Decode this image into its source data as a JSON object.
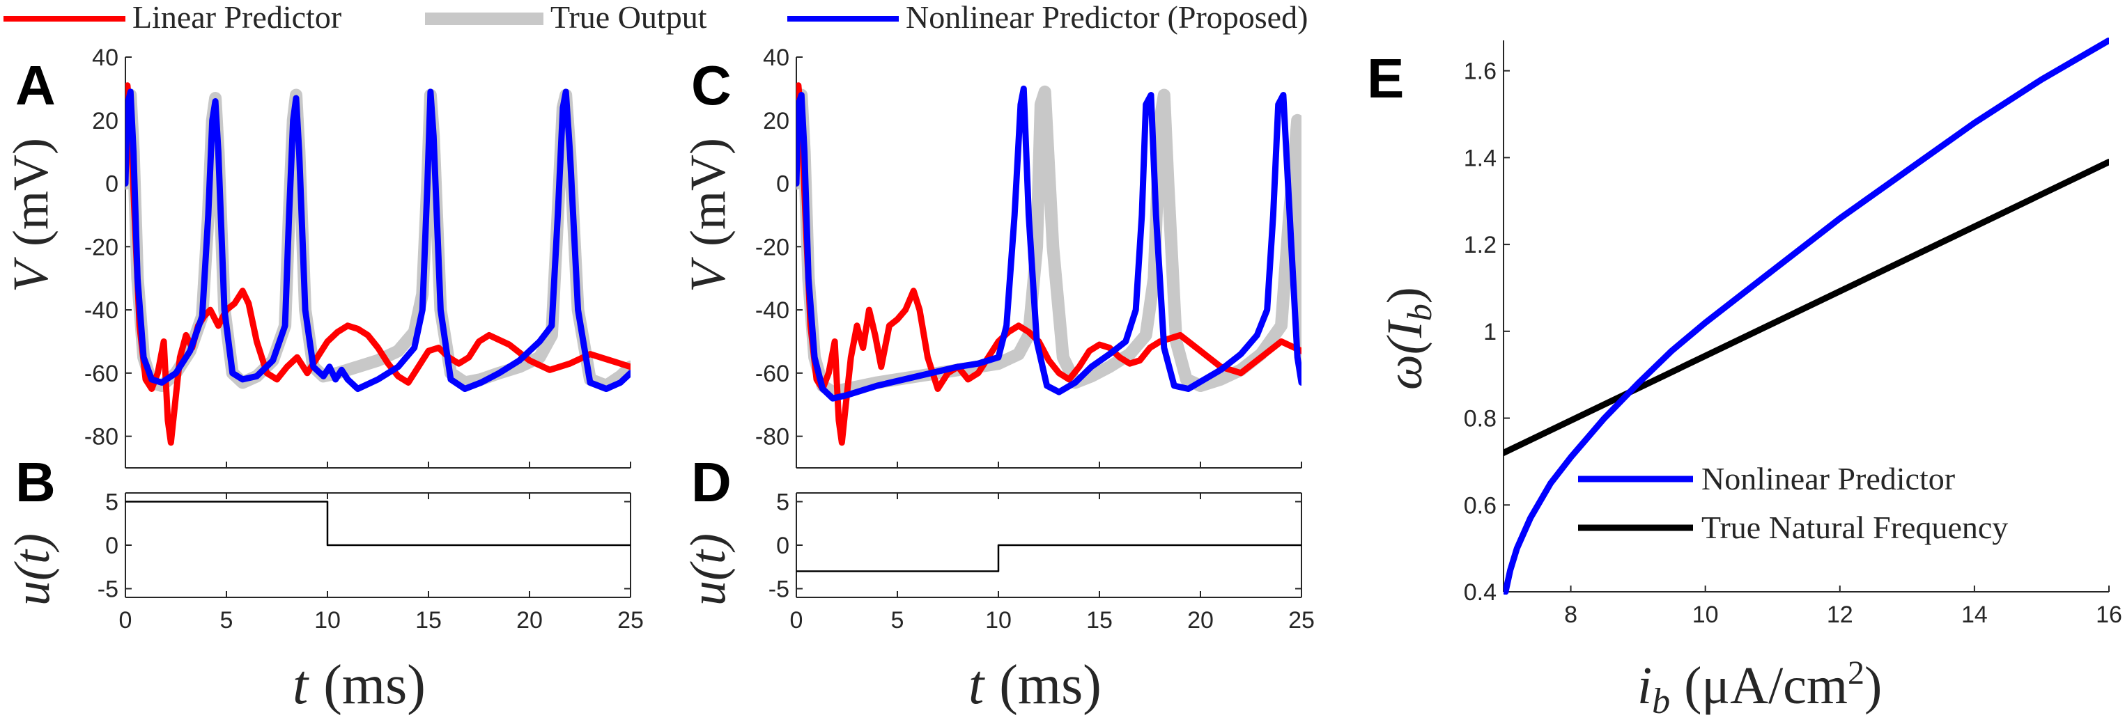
{
  "legend_top": {
    "items": [
      {
        "label": "Linear Predictor",
        "color": "#ff0000",
        "style": "thin"
      },
      {
        "label": "True Output",
        "color": "#c8c8c8",
        "style": "thick"
      },
      {
        "label": "Nonlinear Predictor (Proposed)",
        "color": "#0000ff",
        "style": "thin"
      }
    ]
  },
  "colors": {
    "linear": "#ff0000",
    "true": "#c8c8c8",
    "nonlinear": "#0000ff",
    "black": "#000000"
  },
  "chart_data": [
    {
      "id": "A",
      "letter": "A",
      "type": "line",
      "ylabel_sym": "V",
      "ylabel_unit": "(mV)",
      "xlim": [
        0,
        25
      ],
      "ylim": [
        -90,
        40
      ],
      "yticks": [
        40,
        20,
        0,
        -20,
        -40,
        -60,
        -80
      ],
      "ytick_labels": [
        "40",
        "20",
        "0",
        "-20",
        "-40",
        "-60",
        "-80"
      ],
      "series": [
        {
          "name": "True Output",
          "color": "#c8c8c8",
          "x": [
            0,
            0.1,
            0.25,
            0.4,
            0.6,
            0.9,
            1.3,
            1.8,
            2.5,
            3.2,
            3.8,
            4.1,
            4.3,
            4.45,
            4.6,
            4.9,
            5.3,
            5.8,
            6.5,
            7.3,
            7.9,
            8.1,
            8.3,
            8.45,
            8.6,
            8.9,
            9.3,
            9.8,
            10.5,
            11.5,
            12.5,
            13.5,
            14.3,
            14.7,
            14.95,
            15.1,
            15.25,
            15.6,
            16.1,
            16.8,
            17.6,
            18.5,
            19.5,
            20.5,
            21.1,
            21.4,
            21.65,
            21.8,
            22,
            22.4,
            23,
            23.8,
            24.5,
            25
          ],
          "y": [
            0,
            25,
            28,
            10,
            -30,
            -55,
            -63,
            -64,
            -60,
            -53,
            -42,
            -10,
            20,
            27,
            10,
            -40,
            -60,
            -63,
            -61,
            -56,
            -45,
            -10,
            20,
            28,
            10,
            -40,
            -58,
            -61,
            -60,
            -58,
            -56,
            -53,
            -47,
            -35,
            0,
            28,
            15,
            -40,
            -60,
            -63,
            -62,
            -60,
            -58,
            -55,
            -48,
            -10,
            24,
            28,
            10,
            -40,
            -62,
            -64,
            -61,
            -58
          ]
        },
        {
          "name": "Linear Predictor",
          "color": "#ff0000",
          "x": [
            0,
            0.1,
            0.25,
            0.45,
            0.7,
            1,
            1.3,
            1.6,
            1.9,
            2.1,
            2.25,
            2.45,
            2.7,
            3,
            3.3,
            3.6,
            3.9,
            4.2,
            4.6,
            5,
            5.4,
            5.8,
            6.1,
            6.5,
            7,
            7.5,
            8,
            8.5,
            9,
            9.5,
            10,
            10.5,
            11,
            11.5,
            12,
            12.5,
            13,
            13.5,
            14,
            14.5,
            15,
            15.5,
            16,
            16.5,
            17,
            17.5,
            18,
            19,
            20,
            21,
            22,
            23,
            24,
            25
          ],
          "y": [
            30,
            31,
            20,
            -10,
            -45,
            -62,
            -65,
            -60,
            -50,
            -75,
            -82,
            -70,
            -55,
            -48,
            -52,
            -45,
            -42,
            -40,
            -45,
            -40,
            -38,
            -34,
            -38,
            -50,
            -60,
            -62,
            -58,
            -55,
            -60,
            -55,
            -50,
            -47,
            -45,
            -46,
            -48,
            -52,
            -57,
            -61,
            -63,
            -58,
            -53,
            -52,
            -55,
            -57,
            -55,
            -50,
            -48,
            -51,
            -56,
            -59,
            -57,
            -54,
            -56,
            -58
          ]
        },
        {
          "name": "Nonlinear Predictor (Proposed)",
          "color": "#0000ff",
          "x": [
            0,
            0.1,
            0.25,
            0.4,
            0.6,
            0.9,
            1.3,
            1.8,
            2.5,
            3.2,
            3.8,
            4.1,
            4.3,
            4.45,
            4.6,
            4.9,
            5.3,
            5.8,
            6.5,
            7.3,
            7.9,
            8.1,
            8.3,
            8.45,
            8.6,
            8.9,
            9.3,
            9.8,
            10.1,
            10.4,
            10.7,
            11,
            11.5,
            12.5,
            13.5,
            14.3,
            14.7,
            14.95,
            15.1,
            15.25,
            15.6,
            16.1,
            16.8,
            17.6,
            18.5,
            19.5,
            20.5,
            21.1,
            21.4,
            21.65,
            21.8,
            22,
            22.4,
            23,
            23.8,
            24.5,
            25
          ],
          "y": [
            0,
            25,
            29,
            10,
            -30,
            -55,
            -62,
            -63,
            -60,
            -53,
            -42,
            -10,
            20,
            26,
            10,
            -40,
            -60,
            -62,
            -61,
            -56,
            -45,
            -10,
            20,
            27,
            10,
            -40,
            -58,
            -61,
            -58,
            -62,
            -59,
            -62,
            -65,
            -62,
            -58,
            -52,
            -40,
            0,
            29,
            15,
            -40,
            -62,
            -65,
            -63,
            -60,
            -56,
            -50,
            -45,
            -10,
            24,
            29,
            10,
            -40,
            -63,
            -65,
            -63,
            -60
          ]
        }
      ]
    },
    {
      "id": "C",
      "letter": "C",
      "type": "line",
      "ylabel_sym": "V",
      "ylabel_unit": "(mV)",
      "xlim": [
        0,
        25
      ],
      "ylim": [
        -90,
        40
      ],
      "yticks": [
        40,
        20,
        0,
        -20,
        -40,
        -60,
        -80
      ],
      "ytick_labels": [
        "40",
        "20",
        "0",
        "-20",
        "-40",
        "-60",
        "-80"
      ],
      "series": [
        {
          "name": "True Output",
          "color": "#c8c8c8",
          "x": [
            0,
            0.1,
            0.25,
            0.4,
            0.6,
            0.9,
            1.3,
            1.8,
            2.5,
            4,
            6,
            8,
            10,
            11,
            11.5,
            11.9,
            12.1,
            12.3,
            12.7,
            13.2,
            13.8,
            14.6,
            15.5,
            16.5,
            17.3,
            17.7,
            18,
            18.2,
            18.4,
            18.8,
            19.3,
            20,
            21,
            22,
            23,
            24,
            24.4,
            24.8,
            25
          ],
          "y": [
            0,
            25,
            28,
            10,
            -30,
            -55,
            -64,
            -66,
            -65,
            -63,
            -61,
            -59,
            -57,
            -54,
            -48,
            -20,
            25,
            29,
            -20,
            -55,
            -63,
            -61,
            -58,
            -54,
            -48,
            -30,
            20,
            28,
            0,
            -50,
            -62,
            -64,
            -62,
            -59,
            -54,
            -45,
            -10,
            20,
            -55
          ]
        },
        {
          "name": "Linear Predictor",
          "color": "#ff0000",
          "x": [
            0,
            0.1,
            0.25,
            0.45,
            0.7,
            1,
            1.3,
            1.6,
            1.9,
            2.1,
            2.25,
            2.45,
            2.7,
            3,
            3.3,
            3.6,
            3.9,
            4.2,
            4.6,
            5,
            5.4,
            5.8,
            6.1,
            6.5,
            7,
            7.5,
            8,
            8.5,
            9,
            9.5,
            10,
            10.5,
            11,
            11.5,
            12,
            12.5,
            13,
            13.5,
            14,
            14.5,
            15,
            15.5,
            16,
            16.5,
            17,
            17.5,
            18,
            19,
            20,
            21,
            22,
            23,
            24,
            25
          ],
          "y": [
            30,
            31,
            20,
            -10,
            -45,
            -62,
            -65,
            -60,
            -50,
            -75,
            -82,
            -70,
            -55,
            -45,
            -52,
            -40,
            -48,
            -58,
            -45,
            -43,
            -40,
            -34,
            -40,
            -55,
            -65,
            -60,
            -58,
            -62,
            -60,
            -55,
            -50,
            -47,
            -45,
            -47,
            -50,
            -56,
            -60,
            -62,
            -58,
            -53,
            -51,
            -52,
            -55,
            -57,
            -56,
            -52,
            -50,
            -48,
            -53,
            -58,
            -60,
            -55,
            -50,
            -53
          ]
        },
        {
          "name": "Nonlinear Predictor (Proposed)",
          "color": "#0000ff",
          "x": [
            0,
            0.1,
            0.25,
            0.4,
            0.6,
            0.9,
            1.3,
            1.8,
            2.5,
            4,
            6,
            8,
            9,
            10,
            10.4,
            10.8,
            11.1,
            11.25,
            11.5,
            11.9,
            12.4,
            13,
            13.8,
            14.6,
            15.5,
            16.3,
            16.8,
            17.1,
            17.3,
            17.55,
            17.8,
            18.2,
            18.7,
            19.4,
            20.2,
            21,
            22,
            22.8,
            23.3,
            23.6,
            23.85,
            24.1,
            24.5,
            24.8,
            25
          ],
          "y": [
            0,
            25,
            28,
            10,
            -30,
            -55,
            -65,
            -68,
            -67,
            -64,
            -61,
            -58,
            -57,
            -55,
            -45,
            -10,
            25,
            30,
            -10,
            -50,
            -64,
            -66,
            -63,
            -58,
            -54,
            -50,
            -40,
            -10,
            25,
            28,
            -10,
            -52,
            -64,
            -65,
            -62,
            -59,
            -54,
            -48,
            -40,
            -10,
            25,
            28,
            -20,
            -55,
            -63
          ]
        }
      ]
    },
    {
      "id": "B",
      "letter": "B",
      "type": "line",
      "ylabel_text": "u(t)",
      "xlim": [
        0,
        25
      ],
      "ylim": [
        -6,
        6
      ],
      "yticks": [
        5,
        0,
        -5
      ],
      "ytick_labels": [
        "5",
        "0",
        "-5"
      ],
      "xticks": [
        0,
        5,
        10,
        15,
        20,
        25
      ],
      "xtick_labels": [
        "0",
        "5",
        "10",
        "15",
        "20",
        "25"
      ],
      "xlabel_sym": "t",
      "xlabel_unit": "(ms)",
      "series": [
        {
          "name": "input",
          "color": "#000000",
          "x": [
            0,
            10,
            10,
            25
          ],
          "y": [
            5,
            5,
            0,
            0
          ]
        }
      ]
    },
    {
      "id": "D",
      "letter": "D",
      "type": "line",
      "ylabel_text": "u(t)",
      "xlim": [
        0,
        25
      ],
      "ylim": [
        -6,
        6
      ],
      "yticks": [
        5,
        0,
        -5
      ],
      "ytick_labels": [
        "5",
        "0",
        "-5"
      ],
      "xticks": [
        0,
        5,
        10,
        15,
        20,
        25
      ],
      "xtick_labels": [
        "0",
        "5",
        "10",
        "15",
        "20",
        "25"
      ],
      "xlabel_sym": "t",
      "xlabel_unit": "(ms)",
      "series": [
        {
          "name": "input",
          "color": "#000000",
          "x": [
            0,
            10,
            10,
            25
          ],
          "y": [
            -3,
            -3,
            0,
            0
          ]
        }
      ]
    },
    {
      "id": "E",
      "letter": "E",
      "type": "line",
      "ylabel_text": "ω(I",
      "ylabel_sub": "b",
      "ylabel_close": ")",
      "xlabel_sym": "i",
      "xlabel_sub": "b",
      "xlabel_unit": "(μA/cm",
      "xlabel_sup": "2",
      "xlabel_close": ")",
      "xlim": [
        7,
        16
      ],
      "ylim": [
        0.4,
        1.67
      ],
      "yticks": [
        1.6,
        1.4,
        1.2,
        1,
        0.8,
        0.6,
        0.4
      ],
      "ytick_labels": [
        "1.6",
        "1.4",
        "1.2",
        "1",
        "0.8",
        "0.6",
        "0.4"
      ],
      "xticks": [
        8,
        10,
        12,
        14,
        16
      ],
      "xtick_labels": [
        "8",
        "10",
        "12",
        "14",
        "16"
      ],
      "legend_position": "bottom-right",
      "series": [
        {
          "name": "Nonlinear Predictor",
          "color": "#0000ff",
          "x": [
            7.03,
            7.1,
            7.2,
            7.4,
            7.7,
            8,
            8.5,
            9,
            9.5,
            10,
            11,
            12,
            13,
            14,
            15,
            16
          ],
          "y": [
            0.4,
            0.45,
            0.5,
            0.57,
            0.65,
            0.71,
            0.8,
            0.88,
            0.955,
            1.02,
            1.14,
            1.26,
            1.37,
            1.48,
            1.58,
            1.67
          ]
        },
        {
          "name": "True Natural Frequency",
          "color": "#000000",
          "x": [
            7,
            16
          ],
          "y": [
            0.72,
            1.39
          ]
        }
      ]
    }
  ]
}
